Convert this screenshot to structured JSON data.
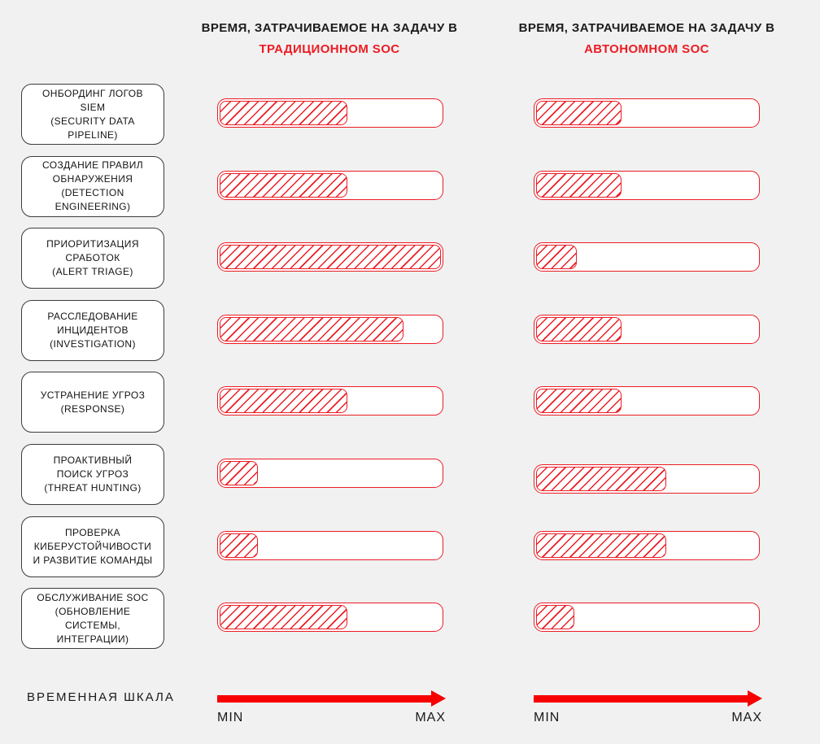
{
  "colors": {
    "background": "#f1f1f1",
    "bar_red": "#ec1c24",
    "arrow_red": "#f60000",
    "box_border": "#3c3c3c"
  },
  "columns": [
    {
      "title_line1": "ВРЕМЯ, ЗАТРАЧИВАЕМОЕ НА ЗАДАЧУ В",
      "title_line2": "ТРАДИЦИОННОМ SOC"
    },
    {
      "title_line1": "ВРЕМЯ, ЗАТРАЧИВАЕМОЕ НА ЗАДАЧУ В",
      "title_line2": "АВТОНОМНОМ SOC"
    }
  ],
  "rows": [
    {
      "label": "ОНБОРДИНГ ЛОГОВ\nSIEM\n(SECURITY DATA\nPIPELINE)",
      "traditional_pct": 57,
      "autonomous_pct": 38
    },
    {
      "label": "СОЗДАНИЕ ПРАВИЛ\nОБНАРУЖЕНИЯ\n(DETECTION\nENGINEERING)",
      "traditional_pct": 57,
      "autonomous_pct": 38
    },
    {
      "label": "ПРИОРИТИЗАЦИЯ\nСРАБОТОК\n(ALERT TRIAGE)",
      "traditional_pct": 100,
      "autonomous_pct": 18
    },
    {
      "label": "РАССЛЕДОВАНИЕ\nИНЦИДЕНТОВ\n(INVESTIGATION)",
      "traditional_pct": 82,
      "autonomous_pct": 38
    },
    {
      "label": "УСТРАНЕНИЕ УГРОЗ\n(RESPONSE)",
      "traditional_pct": 57,
      "autonomous_pct": 38
    },
    {
      "label": "ПРОАКТИВНЫЙ\nПОИСК УГРОЗ\n(THREAT HUNTING)",
      "traditional_pct": 17,
      "autonomous_pct": 58
    },
    {
      "label": "ПРОВЕРКА\nКИБЕРУСТОЙЧИВОСТИ\nИ РАЗВИТИЕ КОМАНДЫ",
      "traditional_pct": 17,
      "autonomous_pct": 58
    },
    {
      "label": "ОБСЛУЖИВАНИЕ SOC\n(ОБНОВЛЕНИЕ\nСИСТЕМЫ,\nИНТЕГРАЦИИ)",
      "traditional_pct": 57,
      "autonomous_pct": 17
    }
  ],
  "timeline": {
    "label": "ВРЕМЕННАЯ ШКАЛА",
    "min": "MIN",
    "max": "MAX"
  },
  "chart_data": {
    "type": "bar",
    "orientation": "horizontal",
    "title": "ВРЕМЯ, ЗАТРАЧИВАЕМОЕ НА ЗАДАЧУ: ТРАДИЦИОННЫЙ SOC vs АВТОНОМНЫЙ SOC",
    "categories": [
      "ОНБОРДИНГ ЛОГОВ SIEM (SECURITY DATA PIPELINE)",
      "СОЗДАНИЕ ПРАВИЛ ОБНАРУЖЕНИЯ (DETECTION ENGINEERING)",
      "ПРИОРИТИЗАЦИЯ СРАБОТОК (ALERT TRIAGE)",
      "РАССЛЕДОВАНИЕ ИНЦИДЕНТОВ (INVESTIGATION)",
      "УСТРАНЕНИЕ УГРОЗ (RESPONSE)",
      "ПРОАКТИВНЫЙ ПОИСК УГРОЗ (THREAT HUNTING)",
      "ПРОВЕРКА КИБЕРУСТОЙЧИВОСТИ И РАЗВИТИЕ КОМАНДЫ",
      "ОБСЛУЖИВАНИЕ SOC (ОБНОВЛЕНИЕ СИСТЕМЫ, ИНТЕГРАЦИИ)"
    ],
    "series": [
      {
        "name": "ТРАДИЦИОННОМ SOC",
        "values": [
          57,
          57,
          100,
          82,
          57,
          17,
          17,
          57
        ]
      },
      {
        "name": "АВТОНОМНОМ SOC",
        "values": [
          38,
          38,
          18,
          38,
          38,
          58,
          58,
          17
        ]
      }
    ],
    "xlabel": "ВРЕМЕННАЯ ШКАЛА (MIN → MAX)",
    "xlim": [
      0,
      100
    ],
    "units": "percent of max time",
    "grid": false,
    "legend_position": "column headers (top)"
  }
}
